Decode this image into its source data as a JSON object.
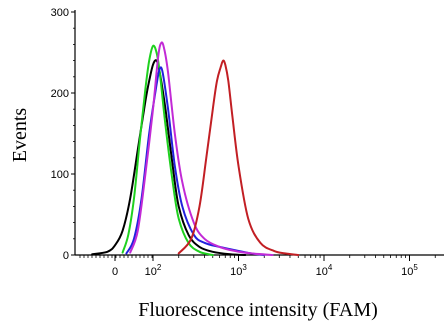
{
  "chart_data": {
    "type": "line",
    "title": "",
    "xlabel": "Fluorescence intensity (FAM)",
    "ylabel": "Events",
    "xscale": "log",
    "xlim": [
      -100,
      300000
    ],
    "ylim": [
      0,
      300
    ],
    "grid": false,
    "legend": "none",
    "yticks": [
      0,
      100,
      200,
      300
    ],
    "yticklabels": [
      "0",
      "100",
      "200",
      "300"
    ],
    "xticks": [
      0,
      100,
      1000,
      10000,
      100000
    ],
    "xticklabels": [
      {
        "base": "0",
        "exp": ""
      },
      {
        "base": "10",
        "exp": "2"
      },
      {
        "base": "10",
        "exp": "3"
      },
      {
        "base": "10",
        "exp": "4"
      },
      {
        "base": "10",
        "exp": "5"
      }
    ],
    "series": [
      {
        "color": "#000000",
        "x": [
          -60,
          -20,
          0,
          20,
          40,
          60,
          80,
          90,
          100,
          110,
          120,
          140,
          170,
          200,
          260,
          350,
          500,
          800,
          1200
        ],
        "y": [
          1,
          4,
          12,
          30,
          70,
          130,
          190,
          215,
          235,
          240,
          225,
          180,
          110,
          60,
          25,
          10,
          4,
          1,
          0
        ]
      },
      {
        "color": "#1fd11f",
        "x": [
          20,
          35,
          50,
          65,
          80,
          90,
          100,
          110,
          120,
          140,
          170,
          200,
          260,
          350,
          500
        ],
        "y": [
          3,
          25,
          70,
          140,
          205,
          240,
          258,
          250,
          225,
          160,
          90,
          45,
          15,
          4,
          0
        ]
      },
      {
        "color": "#2222dd",
        "x": [
          30,
          50,
          70,
          90,
          110,
          120,
          130,
          150,
          180,
          220,
          300,
          400,
          600,
          900,
          1400,
          2000
        ],
        "y": [
          2,
          20,
          70,
          150,
          210,
          230,
          225,
          180,
          110,
          60,
          25,
          15,
          10,
          6,
          2,
          0
        ]
      },
      {
        "color": "#c22ad6",
        "x": [
          40,
          60,
          80,
          100,
          115,
          125,
          135,
          150,
          180,
          220,
          300,
          400,
          600,
          900,
          1400,
          2500
        ],
        "y": [
          3,
          30,
          100,
          180,
          245,
          262,
          255,
          225,
          150,
          90,
          40,
          20,
          10,
          5,
          2,
          0
        ]
      },
      {
        "color": "#c21f24",
        "x": [
          200,
          280,
          350,
          420,
          500,
          560,
          620,
          660,
          700,
          760,
          850,
          1000,
          1300,
          1800,
          2600,
          3500,
          5000
        ],
        "y": [
          2,
          20,
          60,
          120,
          180,
          215,
          232,
          240,
          235,
          215,
          170,
          110,
          45,
          15,
          5,
          2,
          0
        ]
      }
    ]
  }
}
